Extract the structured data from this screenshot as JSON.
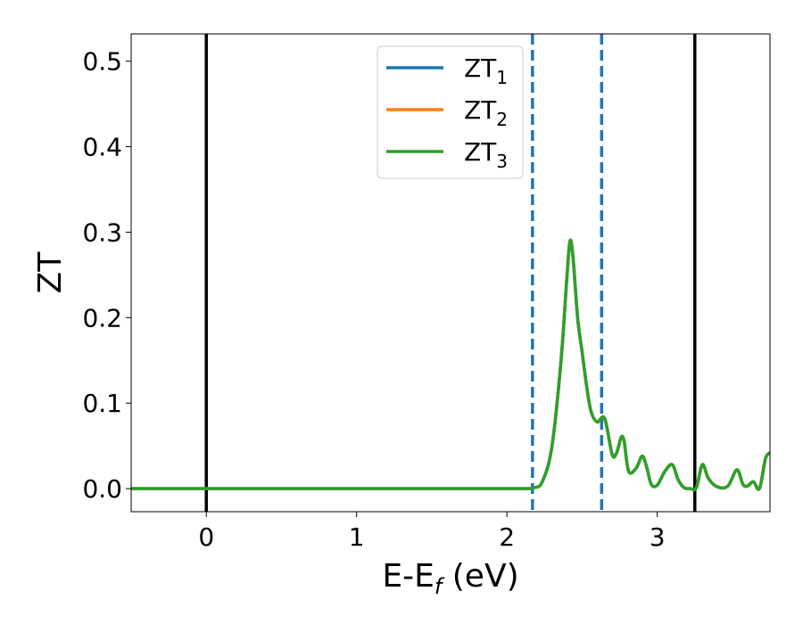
{
  "chart_data": {
    "type": "line",
    "xlabel_main": "E-E",
    "xlabel_sub": "f",
    "xlabel_unit": " (eV)",
    "ylabel": "ZT",
    "xlim": [
      -0.5,
      3.75
    ],
    "ylim": [
      -0.027,
      0.532
    ],
    "xticks": [
      0,
      1,
      2,
      3
    ],
    "xtick_labels": [
      "0",
      "1",
      "2",
      "3"
    ],
    "yticks": [
      0.0,
      0.1,
      0.2,
      0.3,
      0.4,
      0.5
    ],
    "ytick_labels": [
      "0.0",
      "0.1",
      "0.2",
      "0.3",
      "0.4",
      "0.5"
    ],
    "grid": false,
    "legend_position": "top-center",
    "series": [
      {
        "name_main": "ZT",
        "name_sub": "1",
        "color": "#1f77b4",
        "x": [
          -0.5,
          0.0,
          1.0,
          2.0,
          2.18,
          2.24,
          2.3,
          2.36,
          2.4,
          2.42,
          2.44,
          2.47,
          2.5,
          2.53,
          2.56,
          2.6,
          2.65,
          2.7,
          2.73,
          2.76,
          2.78,
          2.81,
          2.86,
          2.9,
          2.93,
          2.96,
          3.0,
          3.05,
          3.1,
          3.14,
          3.18,
          3.22,
          3.26,
          3.3,
          3.34,
          3.4,
          3.47,
          3.53,
          3.57,
          3.6,
          3.64,
          3.68,
          3.72,
          3.75
        ],
        "y": [
          0.0,
          0.0,
          0.0,
          0.0,
          0.001,
          0.01,
          0.05,
          0.15,
          0.25,
          0.29,
          0.27,
          0.2,
          0.16,
          0.12,
          0.09,
          0.078,
          0.082,
          0.04,
          0.042,
          0.06,
          0.055,
          0.02,
          0.024,
          0.038,
          0.025,
          0.005,
          0.004,
          0.02,
          0.028,
          0.01,
          0.001,
          0.0,
          0.001,
          0.028,
          0.012,
          0.002,
          0.003,
          0.022,
          0.005,
          0.003,
          0.008,
          0.0,
          0.035,
          0.042
        ]
      },
      {
        "name_main": "ZT",
        "name_sub": "2",
        "color": "#ff7f0e",
        "x": [
          -0.5,
          0.0,
          1.0,
          2.0,
          2.18,
          2.24,
          2.3,
          2.36,
          2.4,
          2.42,
          2.44,
          2.47,
          2.5,
          2.53,
          2.56,
          2.6,
          2.65,
          2.7,
          2.73,
          2.76,
          2.78,
          2.81,
          2.86,
          2.9,
          2.93,
          2.96,
          3.0,
          3.05,
          3.1,
          3.14,
          3.18,
          3.22,
          3.26,
          3.3,
          3.34,
          3.4,
          3.47,
          3.53,
          3.57,
          3.6,
          3.64,
          3.68,
          3.72,
          3.75
        ],
        "y": [
          0.0,
          0.0,
          0.0,
          0.0,
          0.001,
          0.01,
          0.05,
          0.15,
          0.25,
          0.29,
          0.27,
          0.2,
          0.16,
          0.12,
          0.09,
          0.078,
          0.082,
          0.04,
          0.042,
          0.06,
          0.055,
          0.02,
          0.024,
          0.038,
          0.025,
          0.005,
          0.004,
          0.02,
          0.028,
          0.01,
          0.001,
          0.0,
          0.001,
          0.028,
          0.012,
          0.002,
          0.003,
          0.022,
          0.005,
          0.003,
          0.008,
          0.0,
          0.035,
          0.042
        ]
      },
      {
        "name_main": "ZT",
        "name_sub": "3",
        "color": "#2ca02c",
        "x": [
          -0.5,
          0.0,
          1.0,
          2.0,
          2.18,
          2.24,
          2.3,
          2.36,
          2.4,
          2.42,
          2.44,
          2.47,
          2.5,
          2.53,
          2.56,
          2.6,
          2.65,
          2.7,
          2.73,
          2.76,
          2.78,
          2.81,
          2.86,
          2.9,
          2.93,
          2.96,
          3.0,
          3.05,
          3.1,
          3.14,
          3.18,
          3.22,
          3.26,
          3.3,
          3.34,
          3.4,
          3.47,
          3.53,
          3.57,
          3.6,
          3.64,
          3.68,
          3.72,
          3.75
        ],
        "y": [
          0.0,
          0.0,
          0.0,
          0.0,
          0.001,
          0.01,
          0.05,
          0.15,
          0.25,
          0.29,
          0.27,
          0.2,
          0.16,
          0.12,
          0.09,
          0.078,
          0.082,
          0.04,
          0.042,
          0.06,
          0.055,
          0.02,
          0.024,
          0.038,
          0.025,
          0.005,
          0.004,
          0.02,
          0.028,
          0.01,
          0.001,
          0.0,
          0.001,
          0.028,
          0.012,
          0.002,
          0.003,
          0.022,
          0.005,
          0.003,
          0.008,
          0.0,
          0.035,
          0.042
        ]
      }
    ],
    "vlines": [
      {
        "x": 0.0,
        "style": "solid",
        "color": "#000000"
      },
      {
        "x": 2.17,
        "style": "dashed",
        "color": "#1f77b4"
      },
      {
        "x": 2.63,
        "style": "dashed",
        "color": "#1f77b4"
      },
      {
        "x": 3.25,
        "style": "solid",
        "color": "#000000"
      }
    ]
  }
}
